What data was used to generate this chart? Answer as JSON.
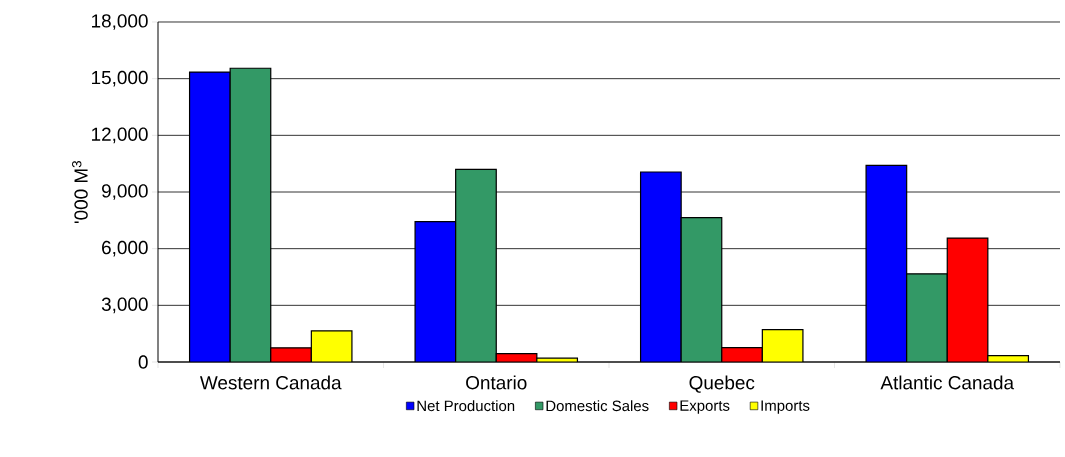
{
  "chart_data": {
    "type": "bar",
    "categories": [
      "Western Canada",
      "Ontario",
      "Quebec",
      "Atlantic Canada"
    ],
    "ylabel": "'000 M$^{3}$",
    "series": [
      {
        "name": "Net Production",
        "color": "#0000ff",
        "values": [
          15350,
          7430,
          10060,
          10410
        ]
      },
      {
        "name": "Domestic Sales",
        "color": "#339966",
        "values": [
          15550,
          10200,
          7640,
          4670
        ]
      },
      {
        "name": "Exports",
        "color": "#ff0000",
        "values": [
          750,
          440,
          760,
          6560
        ]
      },
      {
        "name": "Imports",
        "color": "#ffff00",
        "values": [
          1650,
          200,
          1710,
          340
        ]
      }
    ],
    "ylim": [
      0,
      18000
    ],
    "yticks": [
      {
        "value": 0,
        "label": "0"
      },
      {
        "value": 3000,
        "label": "3,000"
      },
      {
        "value": 6000,
        "label": "6,000"
      },
      {
        "value": 9000,
        "label": "9,000"
      },
      {
        "value": 12000,
        "label": "12,000"
      },
      {
        "value": 15000,
        "label": "15,000"
      },
      {
        "value": 18000,
        "label": "18,000"
      }
    ],
    "grid": "y",
    "legend": "bottom"
  }
}
